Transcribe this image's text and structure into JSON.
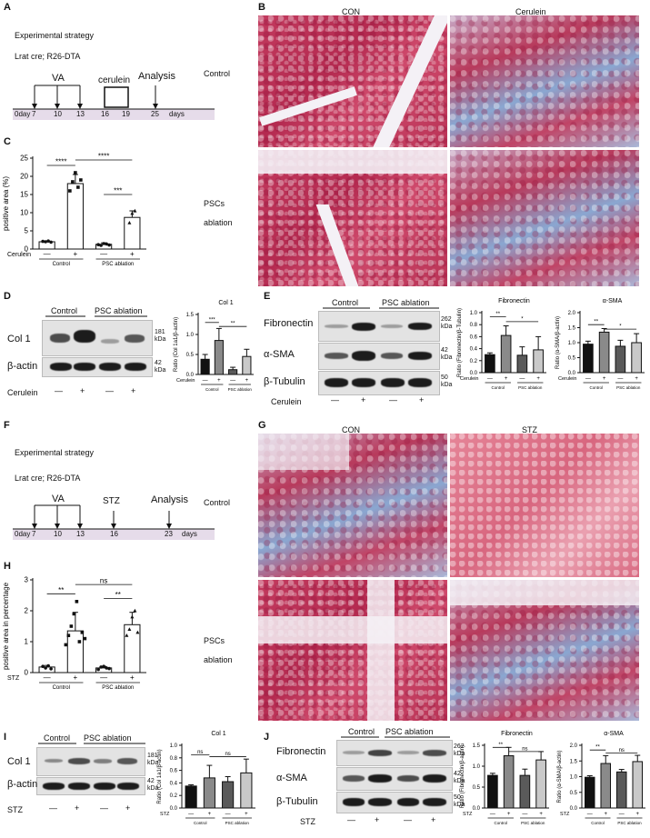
{
  "panels": {
    "A": {
      "letter": "A",
      "title": "Experimental strategy",
      "genotype": "Lrat cre; R26-DTA",
      "labels": {
        "va": "VA",
        "treatment": "cerulein",
        "analysis": "Analysis"
      },
      "timeline": [
        "0day",
        "7",
        "10",
        "13",
        "16",
        "19",
        "25",
        "days"
      ]
    },
    "B": {
      "letter": "B",
      "col_labels": [
        "CON",
        "Cerulein"
      ],
      "row_labels": [
        "Control",
        "PSCs",
        "ablation"
      ]
    },
    "C": {
      "letter": "C"
    },
    "D": {
      "letter": "D",
      "groups": [
        "Control",
        "PSC ablation"
      ],
      "bands": [
        "Col 1",
        "β-actin"
      ],
      "kda": [
        "181",
        "kDa",
        "42",
        "kDa"
      ],
      "treatment": "Cerulein",
      "signs": [
        "—",
        "+",
        "—",
        "+"
      ]
    },
    "E": {
      "letter": "E",
      "groups": [
        "Control",
        "PSC ablation"
      ],
      "bands": [
        "Fibronectin",
        "α-SMA",
        "β-Tubulin"
      ],
      "kda": [
        "262",
        "kDa",
        "42",
        "kDa",
        "50",
        "kDa"
      ],
      "treatment": "Cerulein",
      "signs": [
        "—",
        "+",
        "—",
        "+"
      ]
    },
    "F": {
      "letter": "F",
      "title": "Experimental strategy",
      "genotype": "Lrat cre; R26-DTA",
      "labels": {
        "va": "VA",
        "treatment": "STZ",
        "analysis": "Analysis"
      },
      "timeline": [
        "0day",
        "7",
        "10",
        "13",
        "16",
        "23",
        "days"
      ]
    },
    "G": {
      "letter": "G",
      "col_labels": [
        "CON",
        "STZ"
      ],
      "row_labels": [
        "Control",
        "PSCs",
        "ablation"
      ]
    },
    "H": {
      "letter": "H"
    },
    "I": {
      "letter": "I",
      "groups": [
        "Control",
        "PSC ablation"
      ],
      "bands": [
        "Col 1",
        "β-actin"
      ],
      "kda": [
        "181",
        "kDa",
        "42",
        "kDa"
      ],
      "treatment": "STZ",
      "signs": [
        "—",
        "+",
        "—",
        "+"
      ]
    },
    "J": {
      "letter": "J",
      "groups": [
        "Control",
        "PSC ablation"
      ],
      "bands": [
        "Fibronectin",
        "α-SMA",
        "β-Tubulin"
      ],
      "kda": [
        "262",
        "kDa",
        "42",
        "kDa",
        "50",
        "kDa"
      ],
      "treatment": "STZ",
      "signs": [
        "—",
        "+",
        "—",
        "+"
      ]
    }
  },
  "chart_data": [
    {
      "id": "C",
      "type": "bar",
      "ylabel": "positive area (%)",
      "treatment": "Cerulein",
      "ylim": [
        0,
        25
      ],
      "yticks": [
        "0",
        "5",
        "10",
        "15",
        "20",
        "25"
      ],
      "signs": [
        "—",
        "+",
        "—",
        "+"
      ],
      "groups": [
        "Control",
        "PSC ablation"
      ],
      "values": [
        2.0,
        18.0,
        1.3,
        8.7
      ],
      "errors": [
        0.2,
        2.5,
        0.4,
        1.8
      ],
      "colors": [
        "#ffffff",
        "#ffffff",
        "#ffffff",
        "#ffffff"
      ],
      "points": [
        [
          2.1,
          2.0,
          2.2,
          1.9
        ],
        [
          16,
          18.5,
          21,
          17,
          19
        ],
        [
          1.2,
          1.0,
          1.5,
          1.4,
          1.1
        ],
        [
          7.2,
          9.8,
          10.5
        ]
      ],
      "brackets": [
        {
          "from": 0,
          "to": 1,
          "y": 23.0,
          "label": "****"
        },
        {
          "from": 1,
          "to": 3,
          "y": 24.5,
          "label": "****"
        },
        {
          "from": 2,
          "to": 3,
          "y": 15.0,
          "label": "***"
        }
      ]
    },
    {
      "id": "D",
      "type": "bar",
      "title": "Col 1",
      "ylabel": "Ratio (Col 1a1/β-actin)",
      "treatment": "Cerulein",
      "ylim": [
        0,
        1.5
      ],
      "yticks": [
        "0.0",
        "0.5",
        "1.0",
        "1.5"
      ],
      "signs": [
        "—",
        "+",
        "—",
        "+"
      ],
      "groups": [
        "Control",
        "PSC ablation"
      ],
      "values": [
        0.38,
        0.85,
        0.12,
        0.45
      ],
      "errors": [
        0.12,
        0.3,
        0.06,
        0.18
      ],
      "colors": [
        "#111111",
        "#8a8a8a",
        "#5a5a5a",
        "#c9c9c9"
      ],
      "brackets": [
        {
          "from": 0,
          "to": 1,
          "y": 1.3,
          "label": "***"
        },
        {
          "from": 1,
          "to": 3,
          "y": 1.2,
          "label": "**"
        }
      ]
    },
    {
      "id": "E1",
      "type": "bar",
      "title": "Fibronectin",
      "ylabel": "Ratio (Fibronectin/β-Tubulin)",
      "treatment": "Cerulein",
      "ylim": [
        0,
        1.0
      ],
      "yticks": [
        "0.0",
        "0.2",
        "0.4",
        "0.6",
        "0.8",
        "1.0"
      ],
      "signs": [
        "—",
        "+",
        "—",
        "+"
      ],
      "groups": [
        "Control",
        "PSC ablation"
      ],
      "values": [
        0.3,
        0.62,
        0.29,
        0.38
      ],
      "errors": [
        0.03,
        0.16,
        0.14,
        0.22
      ],
      "colors": [
        "#111111",
        "#8a8a8a",
        "#5a5a5a",
        "#c9c9c9"
      ],
      "brackets": [
        {
          "from": 0,
          "to": 1,
          "y": 0.93,
          "label": "**"
        },
        {
          "from": 1,
          "to": 3,
          "y": 0.85,
          "label": "*"
        }
      ]
    },
    {
      "id": "E2",
      "type": "bar",
      "title": "α-SMA",
      "ylabel": "Ratio (α-SMA/β-actin)",
      "treatment": "Cerulein",
      "ylim": [
        0,
        2.0
      ],
      "yticks": [
        "0.0",
        "0.5",
        "1.0",
        "1.5",
        "2.0"
      ],
      "signs": [
        "—",
        "+",
        "—",
        "+"
      ],
      "groups": [
        "Control",
        "PSC ablation"
      ],
      "values": [
        0.95,
        1.35,
        0.88,
        1.0
      ],
      "errors": [
        0.1,
        0.12,
        0.2,
        0.3
      ],
      "colors": [
        "#111111",
        "#8a8a8a",
        "#5a5a5a",
        "#c9c9c9"
      ],
      "brackets": [
        {
          "from": 0,
          "to": 1,
          "y": 1.6,
          "label": "**"
        },
        {
          "from": 1,
          "to": 3,
          "y": 1.45,
          "label": "*"
        }
      ]
    },
    {
      "id": "H",
      "type": "bar",
      "ylabel": "positive area in percentage",
      "treatment": "STZ",
      "ylim": [
        0,
        3
      ],
      "yticks": [
        "0",
        "1",
        "2",
        "3"
      ],
      "signs": [
        "—",
        "+",
        "—",
        "+"
      ],
      "groups": [
        "Control",
        "PSC ablation"
      ],
      "values": [
        0.18,
        1.35,
        0.15,
        1.55
      ],
      "errors": [
        0.05,
        0.6,
        0.05,
        0.4
      ],
      "colors": [
        "#ffffff",
        "#ffffff",
        "#ffffff",
        "#ffffff"
      ],
      "points": [
        [
          0.2,
          0.15,
          0.22,
          0.12
        ],
        [
          0.9,
          1.2,
          1.5,
          1.9,
          2.3,
          1.0,
          1.3,
          1.1
        ],
        [
          0.1,
          0.18,
          0.2,
          0.15,
          0.13
        ],
        [
          1.2,
          1.4,
          1.8,
          2.0,
          1.3
        ]
      ],
      "brackets": [
        {
          "from": 0,
          "to": 1,
          "y": 2.55,
          "label": "**"
        },
        {
          "from": 1,
          "to": 3,
          "y": 2.85,
          "label": "ns"
        },
        {
          "from": 2,
          "to": 3,
          "y": 2.4,
          "label": "**"
        }
      ]
    },
    {
      "id": "I",
      "type": "bar",
      "title": "Col 1",
      "ylabel": "Ratio (Col 1a1/β-actin)",
      "treatment": "STZ",
      "ylim": [
        0,
        1.0
      ],
      "yticks": [
        "0.0",
        "0.2",
        "0.4",
        "0.6",
        "0.8",
        "1.0"
      ],
      "signs": [
        "—",
        "+",
        "—",
        "+"
      ],
      "groups": [
        "Control",
        "PSC ablation"
      ],
      "values": [
        0.35,
        0.48,
        0.42,
        0.56
      ],
      "errors": [
        0.02,
        0.2,
        0.08,
        0.22
      ],
      "colors": [
        "#111111",
        "#8a8a8a",
        "#5a5a5a",
        "#c9c9c9"
      ],
      "brackets": [
        {
          "from": 0,
          "to": 1,
          "y": 0.85,
          "label": "ns"
        },
        {
          "from": 1,
          "to": 3,
          "y": 0.82,
          "label": "ns"
        }
      ]
    },
    {
      "id": "J1",
      "type": "bar",
      "title": "Fibronectin",
      "ylabel": "Ratio (Fibronectin/β-actin)",
      "treatment": "STZ",
      "ylim": [
        0,
        1.5
      ],
      "yticks": [
        "0.0",
        "0.5",
        "1.0",
        "1.5"
      ],
      "signs": [
        "—",
        "+",
        "—",
        "+"
      ],
      "groups": [
        "Control",
        "PSC ablation"
      ],
      "values": [
        0.78,
        1.25,
        0.78,
        1.15
      ],
      "errors": [
        0.05,
        0.2,
        0.15,
        0.2
      ],
      "colors": [
        "#111111",
        "#8a8a8a",
        "#5a5a5a",
        "#c9c9c9"
      ],
      "brackets": [
        {
          "from": 0,
          "to": 1,
          "y": 1.45,
          "label": "**"
        },
        {
          "from": 1,
          "to": 3,
          "y": 1.35,
          "label": "ns"
        }
      ]
    },
    {
      "id": "J2",
      "type": "bar",
      "title": "α-SMA",
      "ylabel": "Ratio (α-SMA/β-actin)",
      "treatment": "STZ",
      "ylim": [
        0,
        2.0
      ],
      "yticks": [
        "0.0",
        "0.5",
        "1.0",
        "1.5",
        "2.0"
      ],
      "signs": [
        "—",
        "+",
        "—",
        "+"
      ],
      "groups": [
        "Control",
        "PSC ablation"
      ],
      "values": [
        0.98,
        1.42,
        1.15,
        1.48
      ],
      "errors": [
        0.05,
        0.25,
        0.08,
        0.2
      ],
      "colors": [
        "#111111",
        "#8a8a8a",
        "#5a5a5a",
        "#c9c9c9"
      ],
      "brackets": [
        {
          "from": 0,
          "to": 1,
          "y": 1.85,
          "label": "**"
        },
        {
          "from": 1,
          "to": 3,
          "y": 1.75,
          "label": "ns"
        }
      ]
    }
  ]
}
